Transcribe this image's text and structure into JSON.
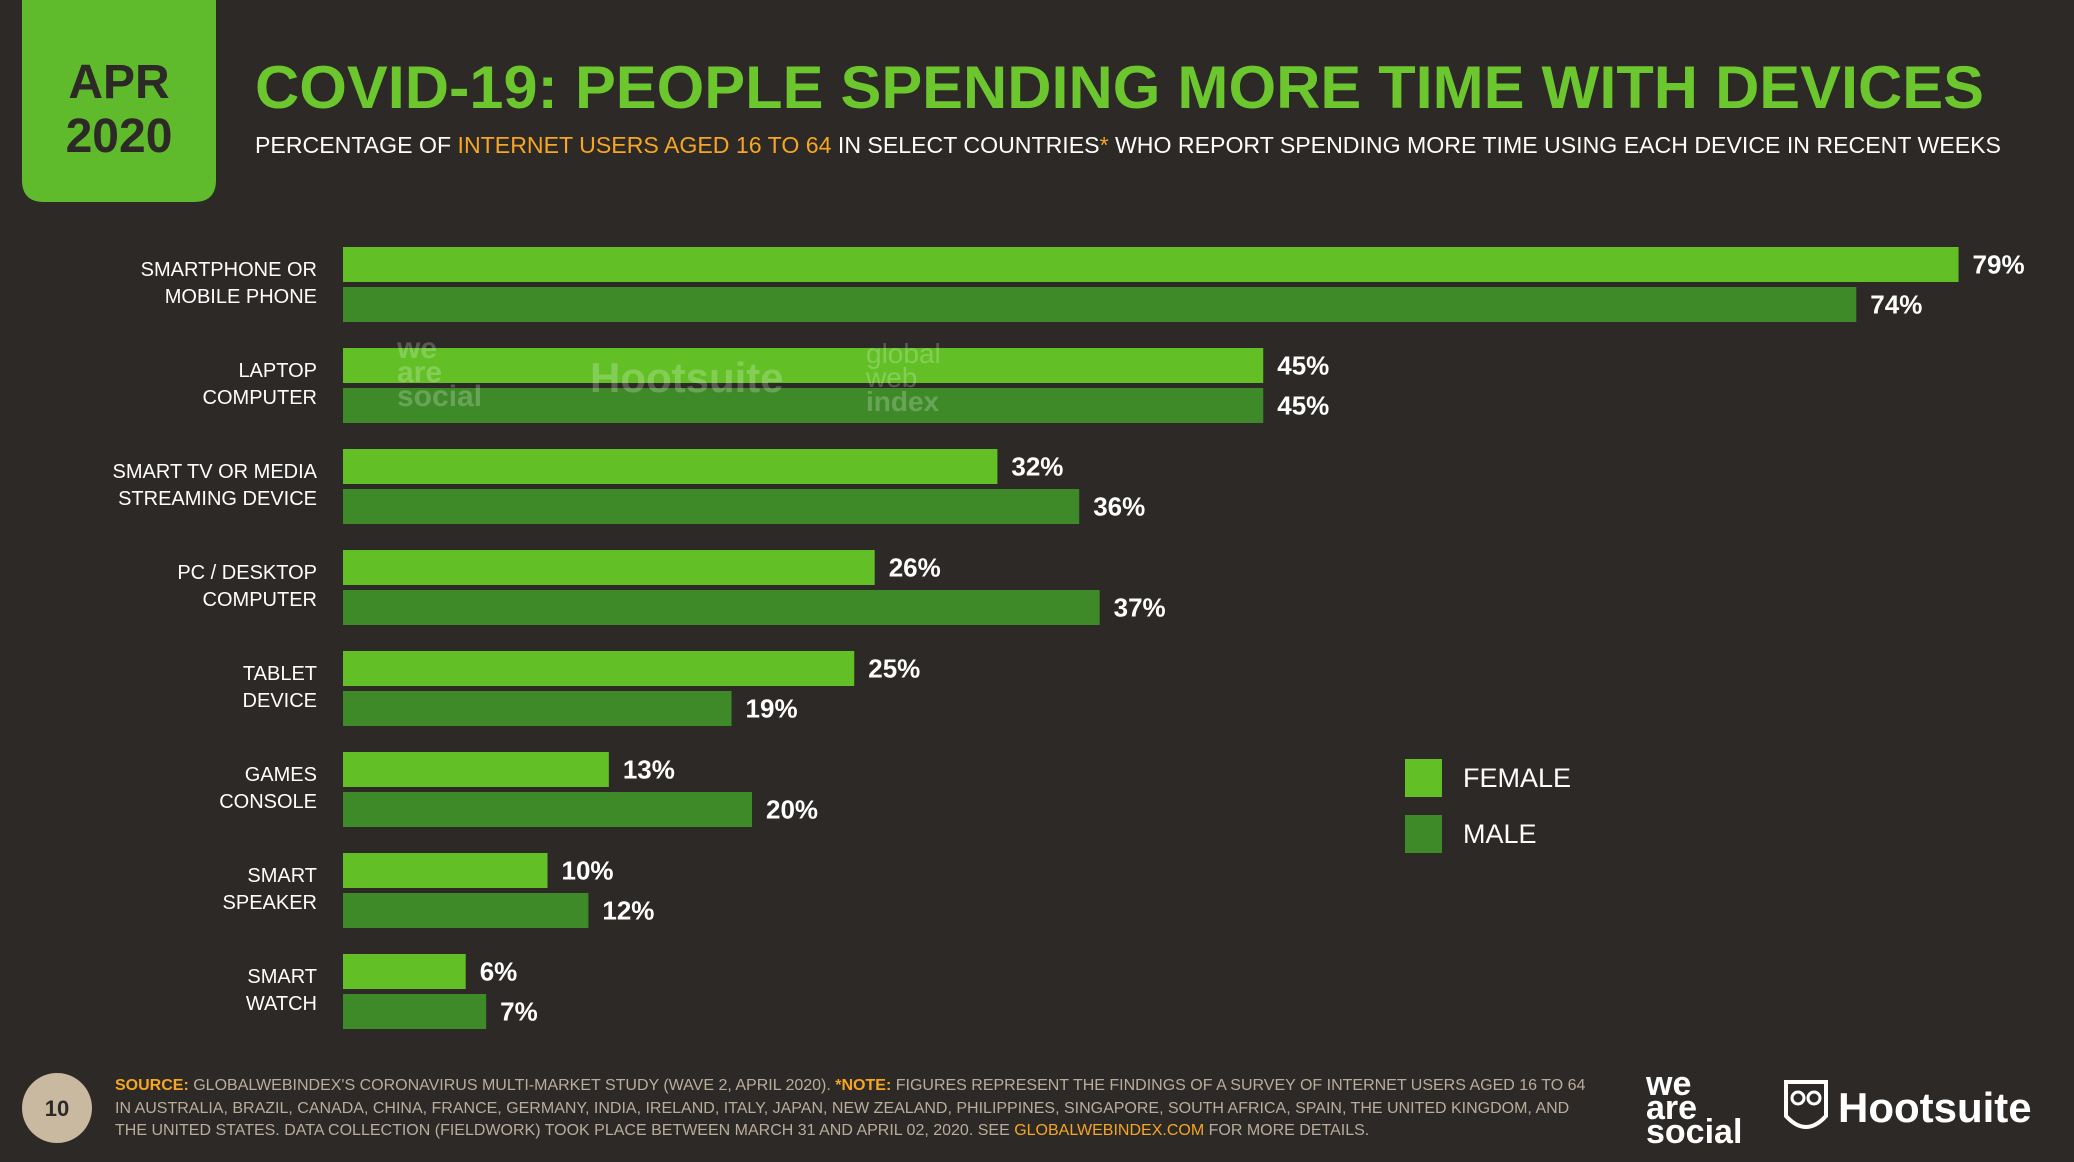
{
  "header": {
    "month": "APR",
    "year": "2020",
    "title": "COVID-19: PEOPLE SPENDING MORE TIME WITH DEVICES",
    "subtitle": {
      "part1": "PERCENTAGE OF",
      "highlight": "INTERNET USERS AGED 16 TO 64",
      "part2": "IN SELECT COUNTRIES",
      "asterisk": "*",
      "part3": "WHO REPORT SPENDING MORE TIME USING EACH DEVICE IN RECENT WEEKS"
    }
  },
  "chart_data": {
    "type": "bar",
    "orientation": "horizontal",
    "categories": [
      "SMARTPHONE OR\nMOBILE PHONE",
      "LAPTOP\nCOMPUTER",
      "SMART TV OR MEDIA\nSTREAMING DEVICE",
      "PC / DESKTOP\nCOMPUTER",
      "TABLET\nDEVICE",
      "GAMES\nCONSOLE",
      "SMART\nSPEAKER",
      "SMART\nWATCH"
    ],
    "series": [
      {
        "name": "FEMALE",
        "color": "#62c026",
        "values": [
          79,
          45,
          32,
          26,
          25,
          13,
          10,
          6
        ],
        "value_labels": [
          "79%",
          "45%",
          "32%",
          "26%",
          "25%",
          "13%",
          "10%",
          "6%"
        ]
      },
      {
        "name": "MALE",
        "color": "#3f8a28",
        "values": [
          74,
          45,
          36,
          37,
          19,
          20,
          12,
          7
        ],
        "value_labels": [
          "74%",
          "45%",
          "36%",
          "37%",
          "19%",
          "20%",
          "12%",
          "7%"
        ]
      }
    ]
  },
  "footer": {
    "source_label": "SOURCE:",
    "source_text": "GLOBALWEBINDEX'S CORONAVIRUS MULTI-MARKET STUDY (WAVE 2, APRIL 2020).",
    "note_label": "*NOTE:",
    "note_text": "FIGURES REPRESENT THE FINDINGS OF A SURVEY OF INTERNET USERS AGED 16 TO 64 IN AUSTRALIA, BRAZIL, CANADA, CHINA, FRANCE, GERMANY, INDIA, IRELAND, ITALY, JAPAN, NEW ZEALAND, PHILIPPINES, SINGAPORE, SOUTH AFRICA, SPAIN, THE UNITED KINGDOM, AND THE UNITED STATES. DATA COLLECTION (FIELDWORK) TOOK PLACE BETWEEN MARCH 31 AND APRIL 02, 2020. SEE",
    "link": "GLOBALWEBINDEX.COM",
    "end": "FOR MORE DETAILS."
  },
  "page_number": "10",
  "branding": {
    "we": "we",
    "are": "are",
    "social": "social",
    "hootsuite": "Hootsuite"
  },
  "watermarks": {
    "we": "we",
    "are": "are",
    "social": "social",
    "hootsuite": "Hootsuite",
    "global": "global",
    "web": "web",
    "index": "index"
  }
}
